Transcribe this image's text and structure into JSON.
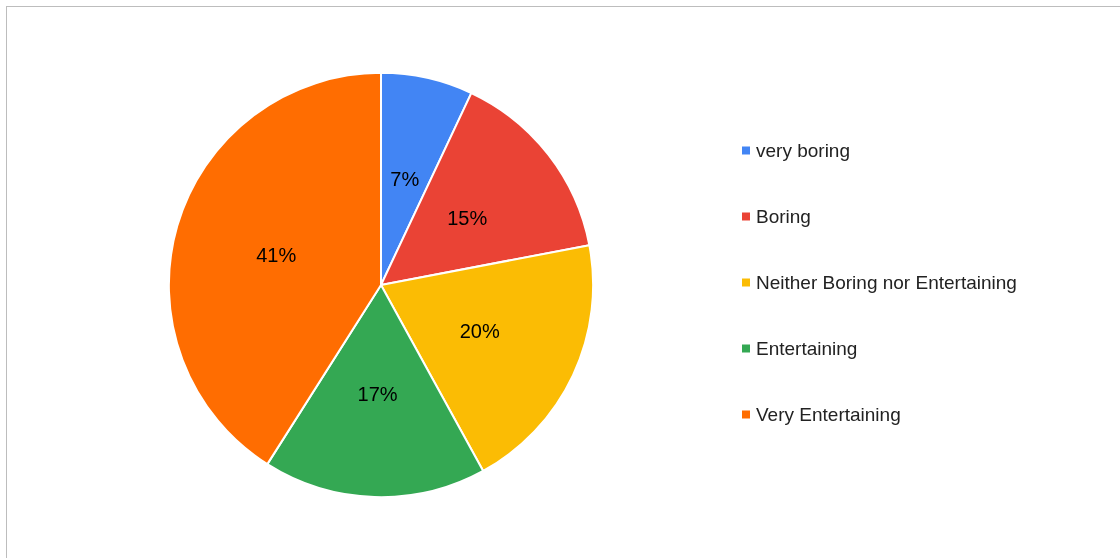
{
  "chart_data": {
    "type": "pie",
    "categories": [
      "very boring",
      "Boring",
      "Neither Boring nor Entertaining",
      "Entertaining",
      "Very Entertaining"
    ],
    "values": [
      7,
      15,
      20,
      17,
      41
    ],
    "colors": [
      "#4285f4",
      "#ea4335",
      "#fbbc04",
      "#34a853",
      "#ff6d01"
    ],
    "value_labels": [
      "7%",
      "15%",
      "20%",
      "17%",
      "41%"
    ],
    "legend": "right"
  }
}
